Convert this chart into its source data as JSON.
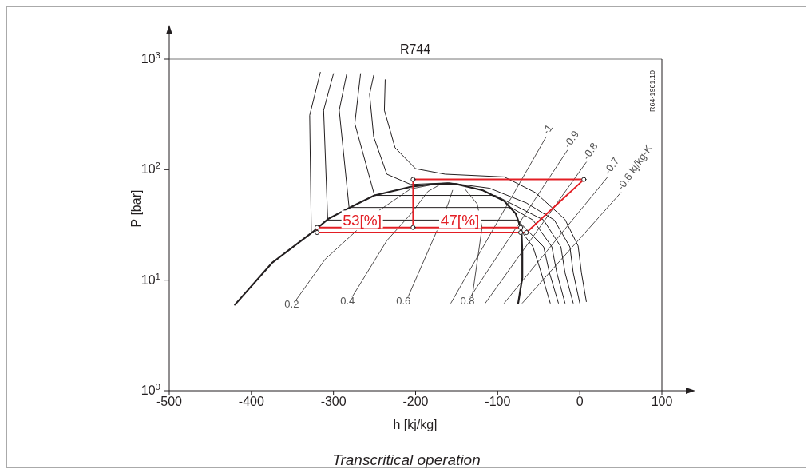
{
  "chart_data": {
    "type": "line",
    "title": "R744",
    "xlabel": "h [kj/kg]",
    "ylabel": "P [bar]",
    "log": "y",
    "xlim": [
      -500,
      100
    ],
    "xticks": [
      -500,
      -400,
      -300,
      -200,
      -100,
      0,
      100
    ],
    "ylim": [
      1,
      1000
    ],
    "yticks": [
      {
        "value": 1,
        "label": "10$^{0}$"
      },
      {
        "value": 10,
        "label": "10$^{1}$"
      },
      {
        "value": 100,
        "label": "10$^{2}$"
      },
      {
        "value": 1000,
        "label": "10$^{3}$"
      }
    ],
    "marker": "none",
    "line_style": "solid",
    "annotations": [
      "Transcritical operation",
      "R64-1961.10",
      {
        "text": "53[%]",
        "x": -265,
        "y": 35
      },
      {
        "text": "47[%]",
        "x": -146,
        "y": 35
      }
    ],
    "series": [
      {
        "color": "#231f20",
        "x": [
          -420,
          -375,
          -326,
          -306,
          -280,
          -250,
          -206,
          -183,
          -160,
          -150,
          -118,
          -92,
          -78,
          -71,
          -70,
          -70,
          -75
        ],
        "values": [
          6,
          14.3,
          27,
          36,
          45.5,
          58.5,
          70,
          73.5,
          75,
          74,
          65,
          52,
          40,
          28.5,
          18,
          10.5,
          6.2
        ]
      },
      {
        "color": "#231f20",
        "x": [
          -316,
          -329,
          -327,
          -200,
          -70,
          -57,
          -47,
          -36
        ],
        "values": [
          760,
          310,
          27,
          null,
          27,
          20,
          11.7,
          6.2
        ]
      },
      {
        "color": "#231f20",
        "x": [
          -300,
          -312,
          -307,
          -76,
          -44,
          -37,
          -26
        ],
        "values": [
          740,
          344,
          35,
          35,
          20,
          11.7,
          6.2
        ]
      },
      {
        "color": "#231f20",
        "x": [
          -284,
          -293,
          -281,
          -84,
          -57,
          -34,
          -28,
          -18
        ],
        "values": [
          727,
          344,
          45.5,
          45.5,
          35,
          20,
          11.7,
          6.2
        ]
      },
      {
        "color": "#231f20",
        "x": [
          -267,
          -274,
          -250,
          -103,
          -44,
          -23,
          -18,
          -8
        ],
        "values": [
          740,
          261,
          58.5,
          58.5,
          35,
          20,
          11.7,
          6.2
        ]
      },
      {
        "color": "#231f20",
        "x": [
          -251,
          -256,
          -251,
          -235,
          -206,
          -160,
          -110,
          -65,
          -31,
          -12,
          -8,
          0
        ],
        "values": [
          714,
          480,
          198,
          91,
          73.5,
          76,
          68,
          50,
          35,
          20,
          11.7,
          6.2
        ]
      },
      {
        "color": "#231f20",
        "x": [
          -237,
          -238,
          -225,
          -200,
          -164,
          -92,
          -54,
          -18,
          -2,
          2,
          8
        ],
        "values": [
          651,
          344,
          158,
          102,
          91,
          86,
          62,
          35.5,
          20.4,
          11.7,
          6.4
        ]
      },
      {
        "name": "0.2",
        "color": "#231f20",
        "x": [
          -345,
          -310,
          -272,
          -258,
          -244,
          -206,
          -180
        ],
        "values": [
          6.7,
          15.5,
          28,
          null,
          43,
          67,
          73
        ]
      },
      {
        "name": "0.4",
        "color": "#231f20",
        "x": [
          -277,
          -235,
          -206,
          -185,
          -172
        ],
        "values": [
          7.1,
          22.8,
          39.6,
          63.5,
          72
        ]
      },
      {
        "name": "0.6",
        "color": "#231f20",
        "x": [
          -209,
          -174,
          -167,
          -163,
          -160,
          -155
        ],
        "values": [
          7.1,
          28,
          null,
          44,
          50,
          65
        ]
      },
      {
        "name": "0.8",
        "color": "#231f20",
        "x": [
          -131,
          -119,
          -125,
          -140
        ],
        "values": [
          7.1,
          30,
          49,
          67
        ]
      },
      {
        "name": "-1",
        "color": "#231f20",
        "x": [
          -41,
          -157
        ],
        "values": [
          198,
          6.2
        ]
      },
      {
        "name": "-0.9",
        "color": "#231f20",
        "x": [
          -15,
          -133
        ],
        "values": [
          150,
          7.1
        ]
      },
      {
        "name": "-0.8",
        "color": "#231f20",
        "x": [
          8,
          -115
        ],
        "values": [
          117,
          6.2
        ]
      },
      {
        "name": "-0.7",
        "color": "#231f20",
        "x": [
          34,
          -92
        ],
        "values": [
          86,
          6.2
        ]
      },
      {
        "name": "-0.6 kj/kg-K",
        "color": "#231f20",
        "x": [
          50,
          -70
        ],
        "values": [
          62,
          6.2
        ]
      },
      {
        "color": "#e31e24",
        "marker": "circle",
        "x": [
          -72,
          -72,
          -320,
          -320,
          -65,
          5,
          -203,
          -203
        ],
        "values": [
          27,
          30,
          30,
          27,
          27,
          81.5,
          81.5,
          30
        ]
      }
    ]
  }
}
